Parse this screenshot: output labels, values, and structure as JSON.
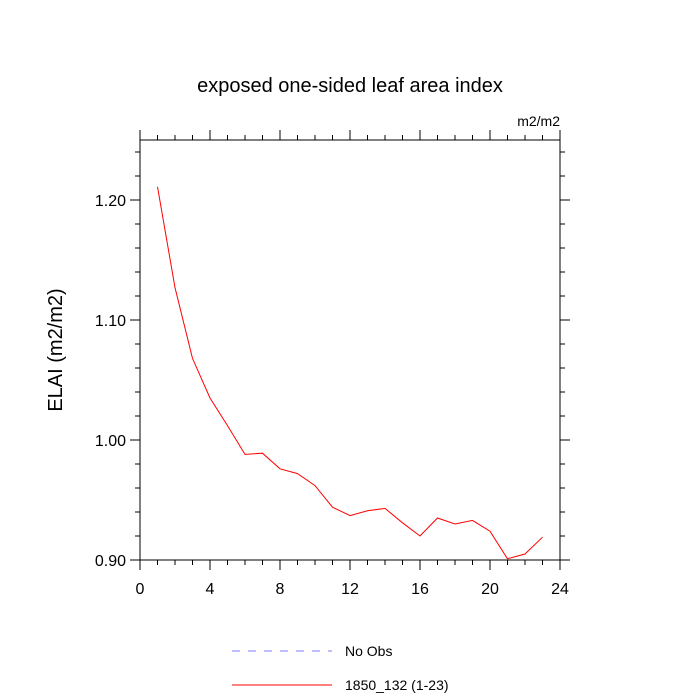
{
  "chart_data": {
    "type": "line",
    "title": "exposed one-sided leaf area index",
    "units_label": "m2/m2",
    "xlabel": "",
    "ylabel": "ELAI  (m2/m2)",
    "xlim": [
      0,
      24
    ],
    "ylim": [
      0.9,
      1.25
    ],
    "x_ticks": [
      0,
      4,
      8,
      12,
      16,
      20,
      24
    ],
    "x_tick_labels": [
      "0",
      "4",
      "8",
      "12",
      "16",
      "20",
      "24"
    ],
    "y_ticks": [
      0.9,
      1.0,
      1.1,
      1.2
    ],
    "y_tick_labels": [
      "0.90",
      "1.00",
      "1.10",
      "1.20"
    ],
    "series": [
      {
        "name": "1850_132 (1-23)",
        "color": "#ff0000",
        "dash": "solid",
        "x": [
          1,
          2,
          3,
          4,
          5,
          6,
          7,
          8,
          9,
          10,
          11,
          12,
          13,
          14,
          15,
          16,
          17,
          18,
          19,
          20,
          21,
          22,
          23
        ],
        "values": [
          1.211,
          1.127,
          1.068,
          1.035,
          1.012,
          0.988,
          0.989,
          0.976,
          0.972,
          0.962,
          0.944,
          0.937,
          0.941,
          0.943,
          0.931,
          0.92,
          0.935,
          0.93,
          0.933,
          0.924,
          0.901,
          0.905,
          0.919
        ]
      }
    ],
    "legend": [
      {
        "label": "No Obs",
        "color": "#7f7fff",
        "dash": "dashed"
      },
      {
        "label": "1850_132 (1-23)",
        "color": "#ff0000",
        "dash": "solid"
      }
    ]
  }
}
